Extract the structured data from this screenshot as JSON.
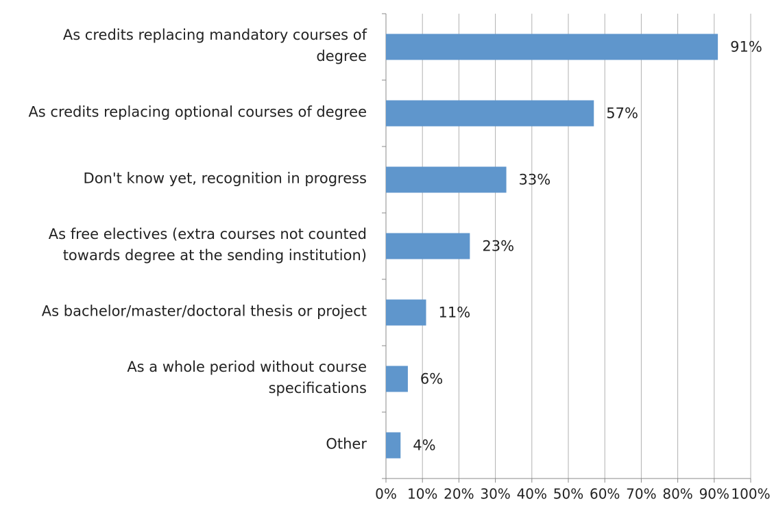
{
  "chart_data": {
    "type": "bar",
    "orientation": "horizontal",
    "categories": [
      "As credits replacing mandatory courses of\ndegree",
      "As credits replacing optional courses of degree",
      "Don't know yet, recognition in progress",
      "As free electives (extra courses not counted\ntowards degree at the sending institution)",
      "As bachelor/master/doctoral thesis or project",
      "As a whole period without course\nspecifications",
      "Other"
    ],
    "values": [
      91,
      57,
      33,
      23,
      11,
      6,
      4
    ],
    "value_labels": [
      "91%",
      "57%",
      "33%",
      "23%",
      "11%",
      "6%",
      "4%"
    ],
    "color": "#5f96cc",
    "xlim": [
      0,
      100
    ],
    "xticks": [
      {
        "value": 0,
        "label": "0%"
      },
      {
        "value": 10,
        "label": "10%"
      },
      {
        "value": 20,
        "label": "20%"
      },
      {
        "value": 30,
        "label": "30%"
      },
      {
        "value": 40,
        "label": "40%"
      },
      {
        "value": 50,
        "label": "50%"
      },
      {
        "value": 60,
        "label": "60%"
      },
      {
        "value": 70,
        "label": "70%"
      },
      {
        "value": 80,
        "label": "80%"
      },
      {
        "value": 90,
        "label": "90%"
      },
      {
        "value": 100,
        "label": "100%"
      }
    ],
    "grid": true
  }
}
